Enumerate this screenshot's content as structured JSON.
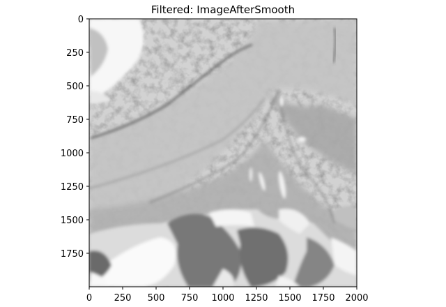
{
  "chart_data": {
    "type": "heatmap",
    "title": "Filtered: ImageAfterSmooth",
    "colormap": "gray",
    "xlabel": "",
    "ylabel": "",
    "xlim": [
      0,
      2000
    ],
    "ylim": [
      2000,
      0
    ],
    "x_ticks": [
      0,
      250,
      500,
      750,
      1000,
      1250,
      1500,
      1750,
      2000
    ],
    "y_ticks": [
      0,
      250,
      500,
      750,
      1000,
      1250,
      1500,
      1750
    ],
    "grid": false
  }
}
